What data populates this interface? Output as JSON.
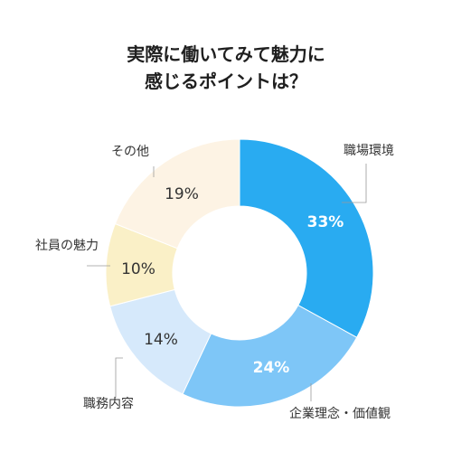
{
  "title": {
    "line1": "実際に働いてみて魅力に",
    "line2": "感じるポイントは？"
  },
  "chart_data": {
    "type": "pie",
    "categories": [
      "職場環境",
      "企業理念・価値観",
      "職務内容",
      "社員の魅力",
      "その他"
    ],
    "values": [
      33,
      24,
      14,
      10,
      19
    ],
    "value_labels": [
      "33%",
      "24%",
      "14%",
      "10%",
      "19%"
    ],
    "colors": [
      "#29abf1",
      "#7ec6f7",
      "#d6e9fb",
      "#faf0c7",
      "#fdf3e4"
    ],
    "label_colors": [
      "#ffffff",
      "#ffffff",
      "#333333",
      "#333333",
      "#333333"
    ],
    "donut": true
  }
}
